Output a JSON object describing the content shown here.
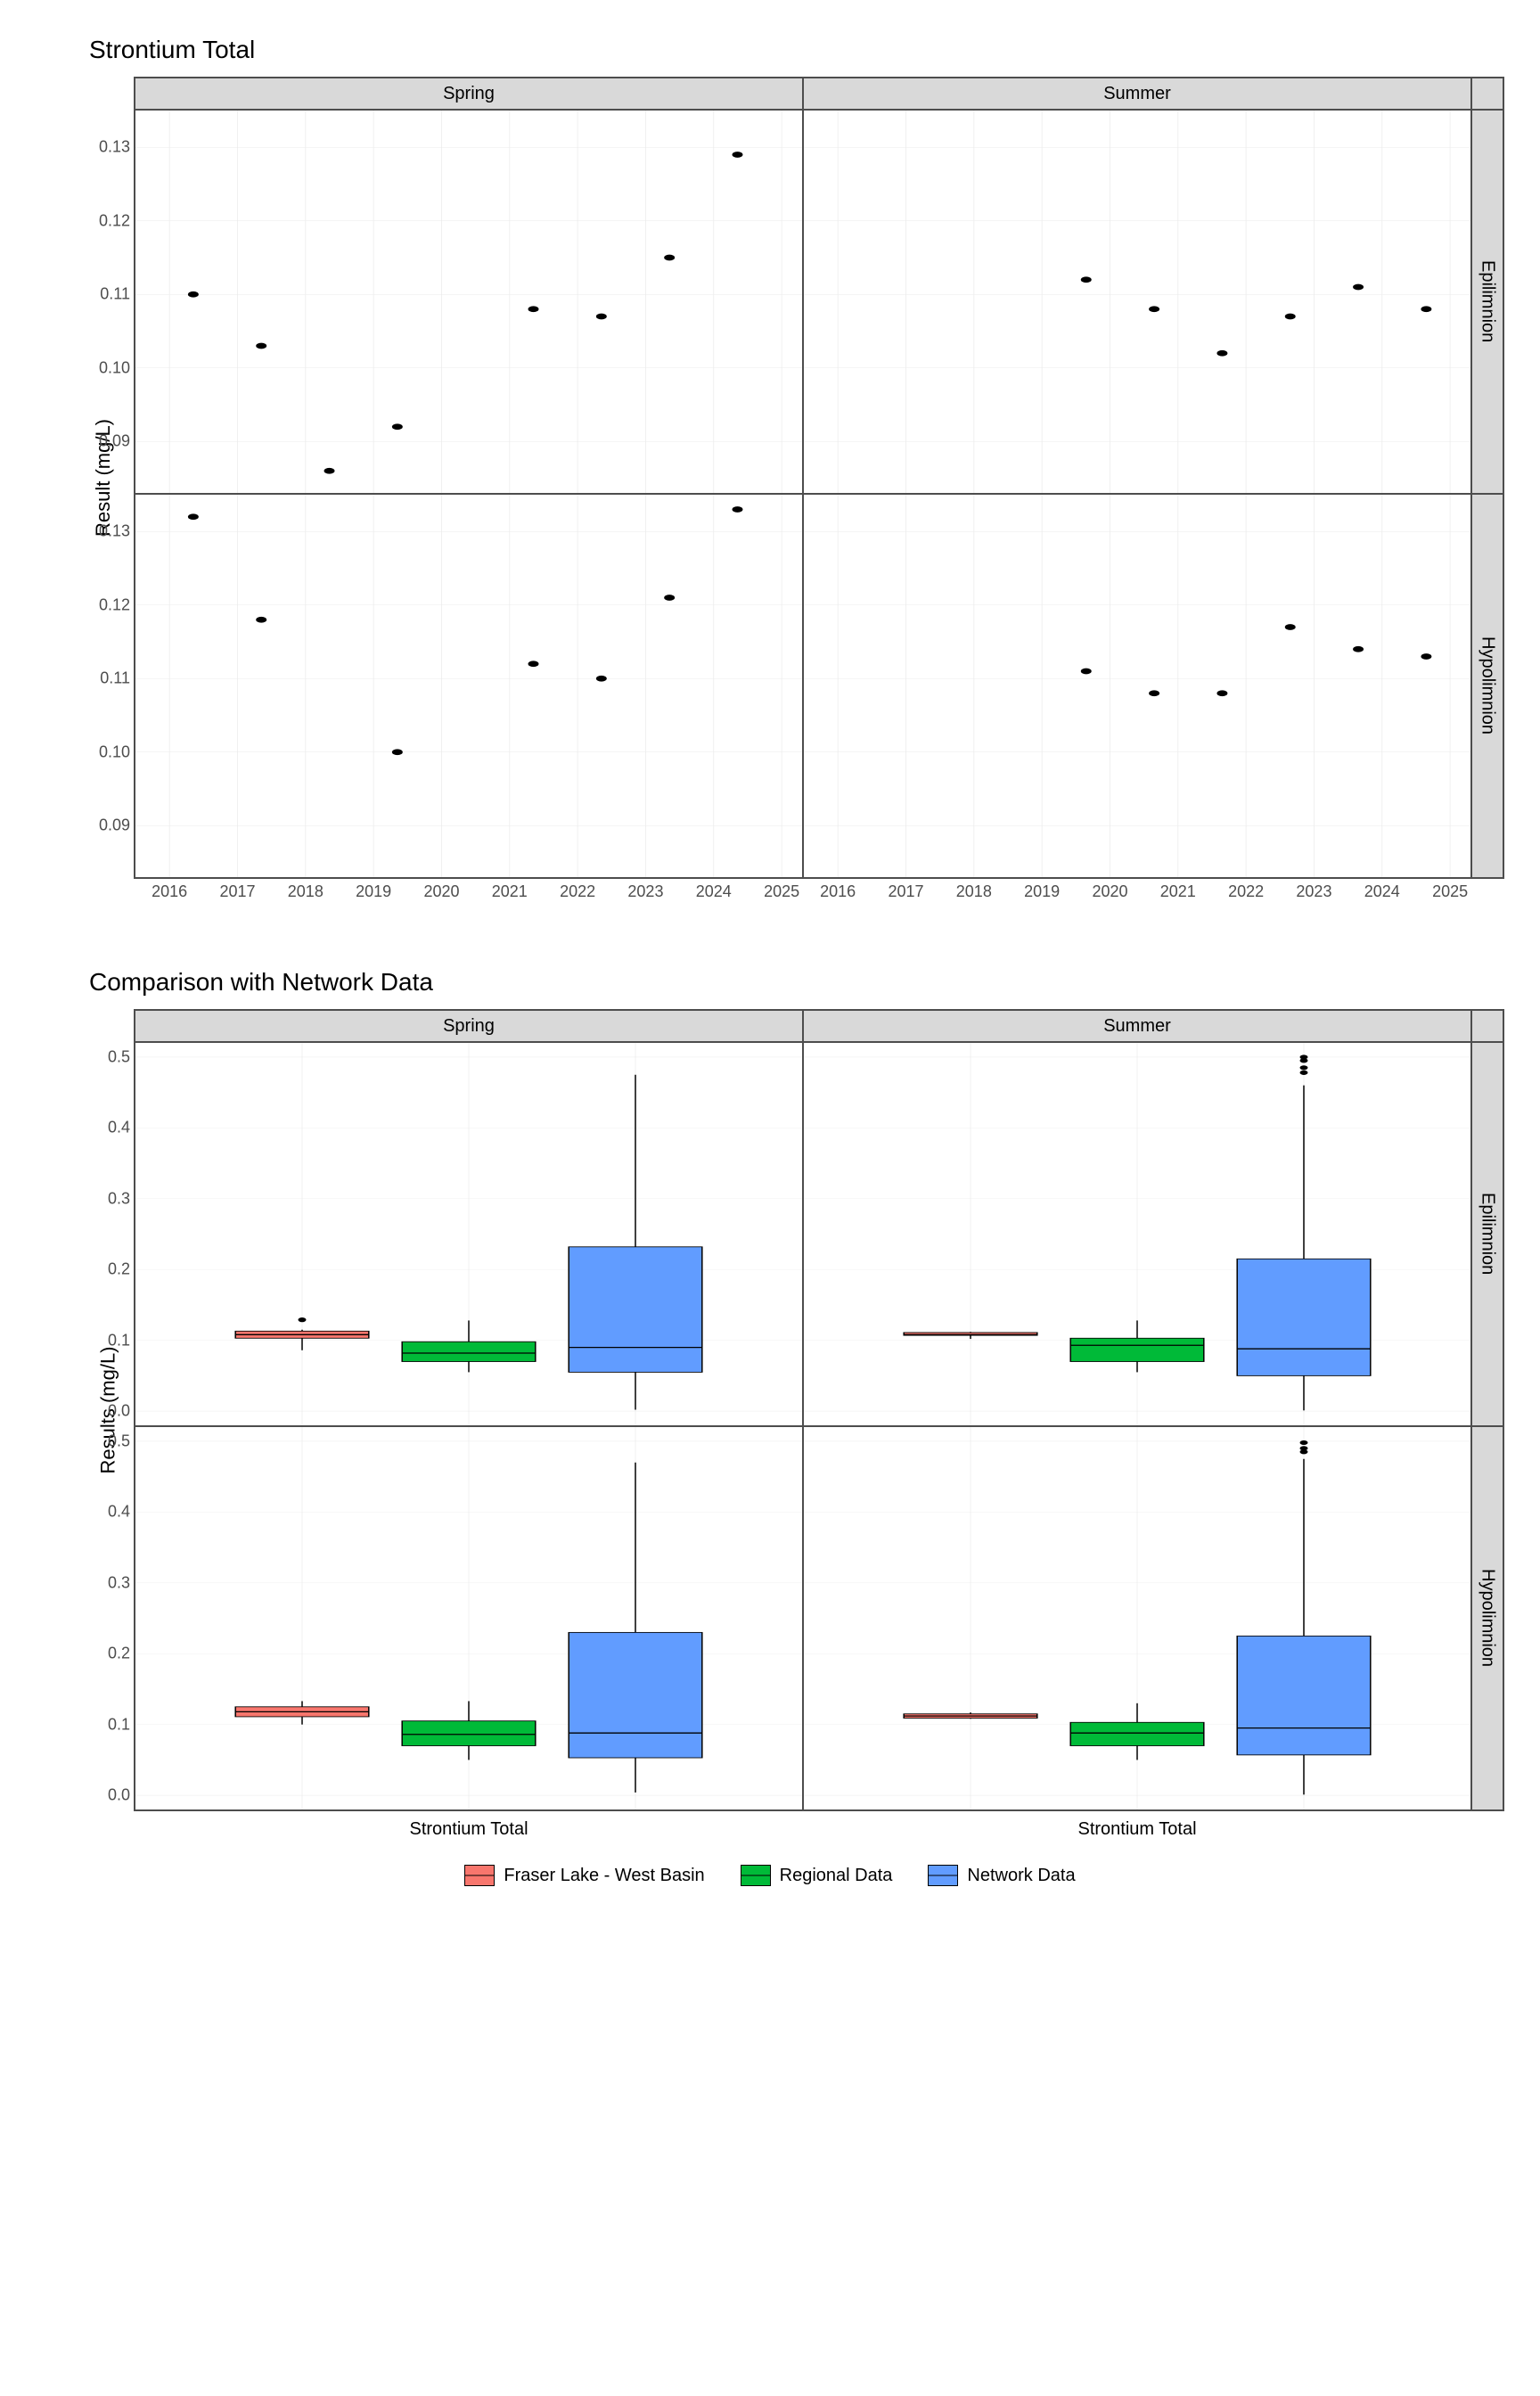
{
  "chart1": {
    "title": "Strontium Total",
    "y_label": "Result (mg/L)",
    "col_facets": [
      "Spring",
      "Summer"
    ],
    "row_facets": [
      "Epilimnion",
      "Hypolimnion"
    ],
    "x_range": [
      2015.5,
      2025.3
    ],
    "x_ticks": [
      2016,
      2017,
      2018,
      2019,
      2020,
      2021,
      2022,
      2023,
      2024,
      2025
    ],
    "y_range": [
      0.083,
      0.135
    ],
    "y_ticks": [
      0.09,
      0.1,
      0.11,
      0.12,
      0.13
    ],
    "point_radius": 4,
    "point_color": "#000000",
    "grid_color": "#ebebeb",
    "panels": {
      "spring_epi": [
        [
          2016.35,
          0.11
        ],
        [
          2017.35,
          0.103
        ],
        [
          2018.35,
          0.086
        ],
        [
          2019.35,
          0.092
        ],
        [
          2021.35,
          0.108
        ],
        [
          2022.35,
          0.107
        ],
        [
          2023.35,
          0.115
        ],
        [
          2024.35,
          0.129
        ]
      ],
      "summer_epi": [
        [
          2019.65,
          0.112
        ],
        [
          2020.65,
          0.108
        ],
        [
          2021.65,
          0.102
        ],
        [
          2022.65,
          0.107
        ],
        [
          2023.65,
          0.111
        ],
        [
          2024.65,
          0.108
        ]
      ],
      "spring_hypo": [
        [
          2016.35,
          0.132
        ],
        [
          2017.35,
          0.118
        ],
        [
          2019.35,
          0.1
        ],
        [
          2021.35,
          0.112
        ],
        [
          2022.35,
          0.11
        ],
        [
          2023.35,
          0.121
        ],
        [
          2024.35,
          0.133
        ]
      ],
      "summer_hypo": [
        [
          2019.65,
          0.111
        ],
        [
          2020.65,
          0.108
        ],
        [
          2021.65,
          0.108
        ],
        [
          2022.65,
          0.117
        ],
        [
          2023.65,
          0.114
        ],
        [
          2024.65,
          0.113
        ]
      ]
    }
  },
  "chart2": {
    "title": "Comparison with Network Data",
    "y_label": "Results (mg/L)",
    "col_facets": [
      "Spring",
      "Summer"
    ],
    "row_facets": [
      "Epilimnion",
      "Hypolimnion"
    ],
    "x_category": "Strontium Total",
    "y_range": [
      -0.02,
      0.52
    ],
    "y_ticks": [
      0.0,
      0.1,
      0.2,
      0.3,
      0.4,
      0.5
    ],
    "box_width": 0.2,
    "series": [
      {
        "name": "Fraser Lake - West Basin",
        "color": "#f8766d",
        "x": 0.25
      },
      {
        "name": "Regional Data",
        "color": "#00ba38",
        "x": 0.5
      },
      {
        "name": "Network Data",
        "color": "#619cff",
        "x": 0.75
      }
    ],
    "panels": {
      "spring_epi": [
        {
          "q1": 0.103,
          "med": 0.108,
          "q3": 0.113,
          "lw": 0.086,
          "uw": 0.115,
          "out": [
            0.129
          ]
        },
        {
          "q1": 0.07,
          "med": 0.082,
          "q3": 0.098,
          "lw": 0.055,
          "uw": 0.128,
          "out": []
        },
        {
          "q1": 0.055,
          "med": 0.09,
          "q3": 0.232,
          "lw": 0.002,
          "uw": 0.475,
          "out": []
        }
      ],
      "summer_epi": [
        {
          "q1": 0.107,
          "med": 0.108,
          "q3": 0.111,
          "lw": 0.102,
          "uw": 0.112,
          "out": []
        },
        {
          "q1": 0.07,
          "med": 0.093,
          "q3": 0.103,
          "lw": 0.055,
          "uw": 0.128,
          "out": []
        },
        {
          "q1": 0.05,
          "med": 0.088,
          "q3": 0.215,
          "lw": 0.001,
          "uw": 0.46,
          "out": [
            0.478,
            0.485,
            0.495,
            0.5
          ]
        }
      ],
      "spring_hypo": [
        {
          "q1": 0.111,
          "med": 0.118,
          "q3": 0.125,
          "lw": 0.1,
          "uw": 0.133,
          "out": []
        },
        {
          "q1": 0.07,
          "med": 0.086,
          "q3": 0.105,
          "lw": 0.05,
          "uw": 0.133,
          "out": []
        },
        {
          "q1": 0.053,
          "med": 0.088,
          "q3": 0.23,
          "lw": 0.004,
          "uw": 0.47,
          "out": []
        }
      ],
      "summer_hypo": [
        {
          "q1": 0.109,
          "med": 0.112,
          "q3": 0.115,
          "lw": 0.108,
          "uw": 0.117,
          "out": []
        },
        {
          "q1": 0.07,
          "med": 0.088,
          "q3": 0.103,
          "lw": 0.05,
          "uw": 0.13,
          "out": []
        },
        {
          "q1": 0.057,
          "med": 0.095,
          "q3": 0.225,
          "lw": 0.001,
          "uw": 0.475,
          "out": [
            0.485,
            0.49,
            0.498
          ]
        }
      ]
    }
  },
  "colors": {
    "strip_bg": "#d9d9d9",
    "panel_border": "#4d4d4d",
    "background": "#ffffff"
  }
}
